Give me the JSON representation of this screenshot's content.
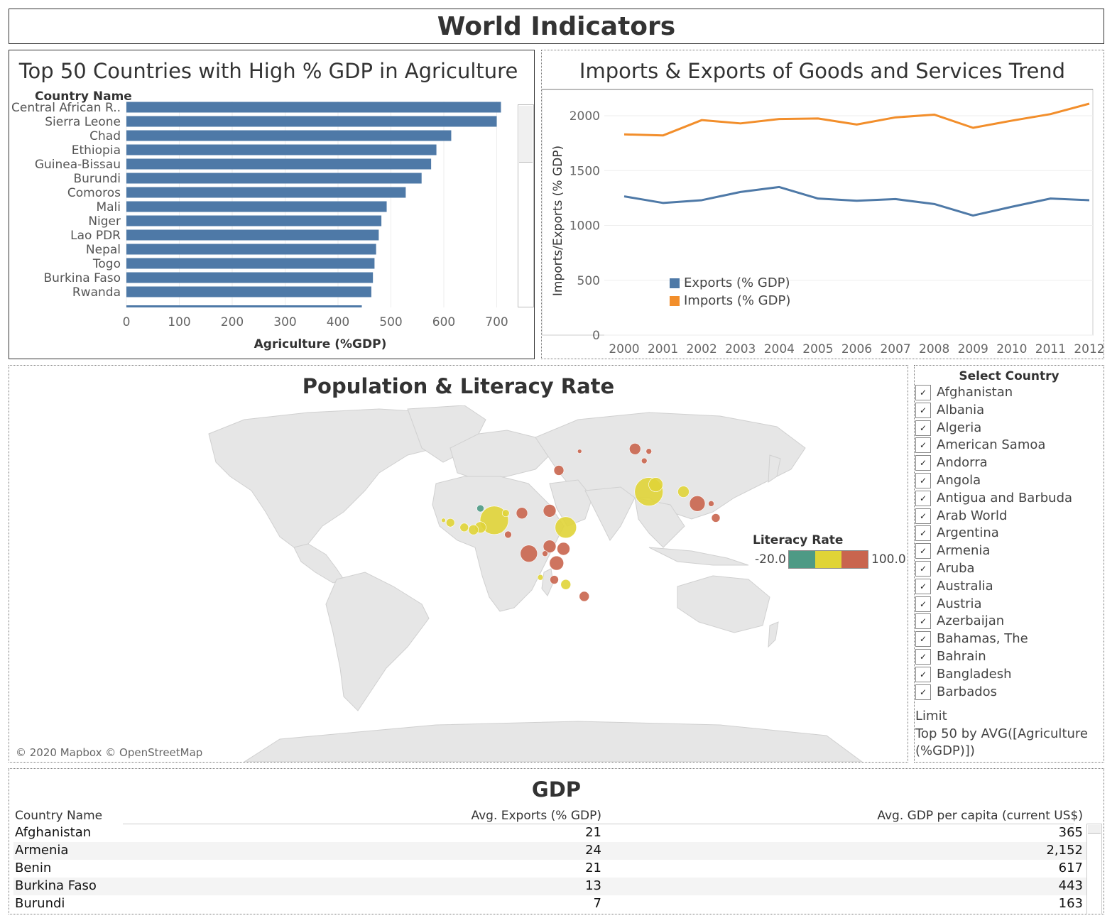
{
  "dashboard": {
    "title": "World Indicators"
  },
  "agriculture_chart": {
    "title": "Top 50 Countries with High % GDP in Agriculture",
    "column_header": "Country Name"
  },
  "trade_chart": {
    "title": "Imports & Exports of Goods and Services Trend",
    "legend": [
      {
        "label": "Exports (% GDP)",
        "color": "#4e79a7"
      },
      {
        "label": "Imports (% GDP)",
        "color": "#f28e2b"
      }
    ]
  },
  "map": {
    "title": "Population & Literacy Rate",
    "attribution": "© 2020 Mapbox © OpenStreetMap",
    "legend_title": "Literacy Rate",
    "legend_min": "-20.0",
    "legend_max": "100.0",
    "legend_colors": [
      "#4e9a85",
      "#e0d437",
      "#c9654e"
    ]
  },
  "filter": {
    "title": "Select Country",
    "countries": [
      "Afghanistan",
      "Albania",
      "Algeria",
      "American Samoa",
      "Andorra",
      "Angola",
      "Antigua and Barbuda",
      "Arab World",
      "Argentina",
      "Armenia",
      "Aruba",
      "Australia",
      "Austria",
      "Azerbaijan",
      "Bahamas, The",
      "Bahrain",
      "Bangladesh",
      "Barbados"
    ],
    "check_glyph": "✓",
    "limit_label": "Limit",
    "limit_text_1": "Top 50 by AVG([Agriculture",
    "limit_text_2": "(%GDP)])"
  },
  "gdp_table": {
    "title": "GDP",
    "headers": [
      "Country Name",
      "Avg. Exports (% GDP)",
      "Avg. GDP per capita (current US$)"
    ],
    "rows": [
      [
        "Afghanistan",
        "21",
        "365"
      ],
      [
        "Armenia",
        "24",
        "2,152"
      ],
      [
        "Benin",
        "21",
        "617"
      ],
      [
        "Burkina Faso",
        "13",
        "443"
      ],
      [
        "Burundi",
        "7",
        "163"
      ]
    ]
  },
  "chart_data": [
    {
      "type": "bar",
      "orientation": "horizontal",
      "title": "Top 50 Countries with High % GDP in Agriculture",
      "xlabel": "Agriculture (%GDP)",
      "ylabel": "Country Name",
      "xlim": [
        0,
        760
      ],
      "xticks": [
        0,
        100,
        200,
        300,
        400,
        500,
        600,
        700
      ],
      "grid": true,
      "categories": [
        "Central African R..",
        "Sierra Leone",
        "Chad",
        "Ethiopia",
        "Guinea-Bissau",
        "Burundi",
        "Comoros",
        "Mali",
        "Niger",
        "Lao PDR",
        "Nepal",
        "Togo",
        "Burkina Faso",
        "Rwanda"
      ],
      "values": [
        708,
        700,
        614,
        586,
        576,
        558,
        528,
        492,
        482,
        477,
        472,
        469,
        466,
        463
      ],
      "color": "#4e79a7"
    },
    {
      "type": "line",
      "title": "Imports & Exports of Goods and Services Trend",
      "xlabel": "",
      "ylabel": "Imports/Exports (% GDP)",
      "ylim": [
        0,
        2200
      ],
      "yticks": [
        0,
        500,
        1000,
        1500,
        2000
      ],
      "grid": true,
      "legend_position": "bottom-left",
      "x": [
        "2000",
        "2001",
        "2002",
        "2003",
        "2004",
        "2005",
        "2006",
        "2007",
        "2008",
        "2009",
        "2010",
        "2011",
        "2012"
      ],
      "series": [
        {
          "name": "Exports (% GDP)",
          "color": "#4e79a7",
          "values": [
            1265,
            1205,
            1230,
            1305,
            1350,
            1245,
            1225,
            1240,
            1195,
            1090,
            1170,
            1245,
            1230
          ]
        },
        {
          "name": "Imports (% GDP)",
          "color": "#f28e2b",
          "values": [
            1830,
            1820,
            1960,
            1930,
            1970,
            1975,
            1920,
            1985,
            2010,
            1890,
            1955,
            2015,
            2110
          ]
        }
      ]
    },
    {
      "type": "scatter",
      "title": "Population & Literacy Rate",
      "color_legend": {
        "title": "Literacy Rate",
        "min": -20.0,
        "max": 100.0
      },
      "points": [
        {
          "lat": 42,
          "lon": 69,
          "color": "#c9654e",
          "size": 8
        },
        {
          "lat": 41,
          "lon": 75,
          "color": "#c9654e",
          "size": 4
        },
        {
          "lat": 37,
          "lon": 73,
          "color": "#c9654e",
          "size": 4
        },
        {
          "lat": 41,
          "lon": 45,
          "color": "#c9654e",
          "size": 3
        },
        {
          "lat": 33,
          "lon": 36,
          "color": "#c9654e",
          "size": 7
        },
        {
          "lat": 24,
          "lon": 75,
          "color": "#e0d437",
          "size": 20
        },
        {
          "lat": 27,
          "lon": 78,
          "color": "#e0d437",
          "size": 10
        },
        {
          "lat": 24,
          "lon": 90,
          "color": "#e0d437",
          "size": 8
        },
        {
          "lat": 19,
          "lon": 96,
          "color": "#c9654e",
          "size": 11
        },
        {
          "lat": 19,
          "lon": 102,
          "color": "#c9654e",
          "size": 4
        },
        {
          "lat": 13,
          "lon": 104,
          "color": "#c9654e",
          "size": 6
        },
        {
          "lat": 16,
          "lon": 32,
          "color": "#c9654e",
          "size": 9
        },
        {
          "lat": 9,
          "lon": 39,
          "color": "#e0d437",
          "size": 15
        },
        {
          "lat": 15,
          "lon": 20,
          "color": "#c9654e",
          "size": 8
        },
        {
          "lat": 12,
          "lon": 8,
          "color": "#e0d437",
          "size": 20
        },
        {
          "lat": 9,
          "lon": 2,
          "color": "#e0d437",
          "size": 8
        },
        {
          "lat": 8,
          "lon": -1,
          "color": "#e0d437",
          "size": 7
        },
        {
          "lat": 9,
          "lon": -5,
          "color": "#e0d437",
          "size": 6
        },
        {
          "lat": 11,
          "lon": -11,
          "color": "#e0d437",
          "size": 6
        },
        {
          "lat": 12,
          "lon": -14,
          "color": "#e0d437",
          "size": 3
        },
        {
          "lat": 17,
          "lon": 2,
          "color": "#4e9a85",
          "size": 5
        },
        {
          "lat": 15,
          "lon": 13,
          "color": "#e0d437",
          "size": 5
        },
        {
          "lat": 6,
          "lon": 14,
          "color": "#c9654e",
          "size": 5
        },
        {
          "lat": -2,
          "lon": 23,
          "color": "#c9654e",
          "size": 12
        },
        {
          "lat": 1,
          "lon": 32,
          "color": "#c9654e",
          "size": 9
        },
        {
          "lat": 0,
          "lon": 38,
          "color": "#c9654e",
          "size": 9
        },
        {
          "lat": -6,
          "lon": 35,
          "color": "#c9654e",
          "size": 10
        },
        {
          "lat": -2,
          "lon": 30,
          "color": "#c9654e",
          "size": 4
        },
        {
          "lat": -13,
          "lon": 34,
          "color": "#c9654e",
          "size": 6
        },
        {
          "lat": -15,
          "lon": 39,
          "color": "#e0d437",
          "size": 7
        },
        {
          "lat": -12,
          "lon": 28,
          "color": "#e0d437",
          "size": 4
        },
        {
          "lat": -20,
          "lon": 47,
          "color": "#c9654e",
          "size": 7
        },
        {
          "lat": -6,
          "lon": 145,
          "color": "#e0d437",
          "size": 4
        }
      ]
    }
  ]
}
